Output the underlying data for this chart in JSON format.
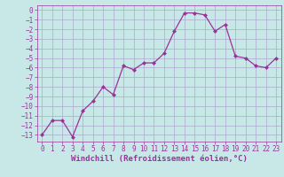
{
  "x": [
    0,
    1,
    2,
    3,
    4,
    5,
    6,
    7,
    8,
    9,
    10,
    11,
    12,
    13,
    14,
    15,
    16,
    17,
    18,
    19,
    20,
    21,
    22,
    23
  ],
  "y": [
    -13,
    -11.5,
    -11.5,
    -13.2,
    -10.5,
    -9.5,
    -8.0,
    -8.8,
    -5.8,
    -6.2,
    -5.5,
    -5.5,
    -4.5,
    -2.2,
    -0.3,
    -0.3,
    -0.5,
    -2.2,
    -1.5,
    -4.8,
    -5.0,
    -5.8,
    -6.0,
    -5.0
  ],
  "line_color": "#993399",
  "marker": "D",
  "marker_color": "#993399",
  "bg_color": "#c8e8e8",
  "grid_color": "#aaaacc",
  "xlabel": "Windchill (Refroidissement éolien,°C)",
  "ylim": [
    -13.7,
    0.5
  ],
  "xlim": [
    -0.5,
    23.5
  ],
  "yticks": [
    0,
    -1,
    -2,
    -3,
    -4,
    -5,
    -6,
    -7,
    -8,
    -9,
    -10,
    -11,
    -12,
    -13
  ],
  "xticks": [
    0,
    1,
    2,
    3,
    4,
    5,
    6,
    7,
    8,
    9,
    10,
    11,
    12,
    13,
    14,
    15,
    16,
    17,
    18,
    19,
    20,
    21,
    22,
    23
  ],
  "tick_fontsize": 5.5,
  "xlabel_fontsize": 6.5
}
